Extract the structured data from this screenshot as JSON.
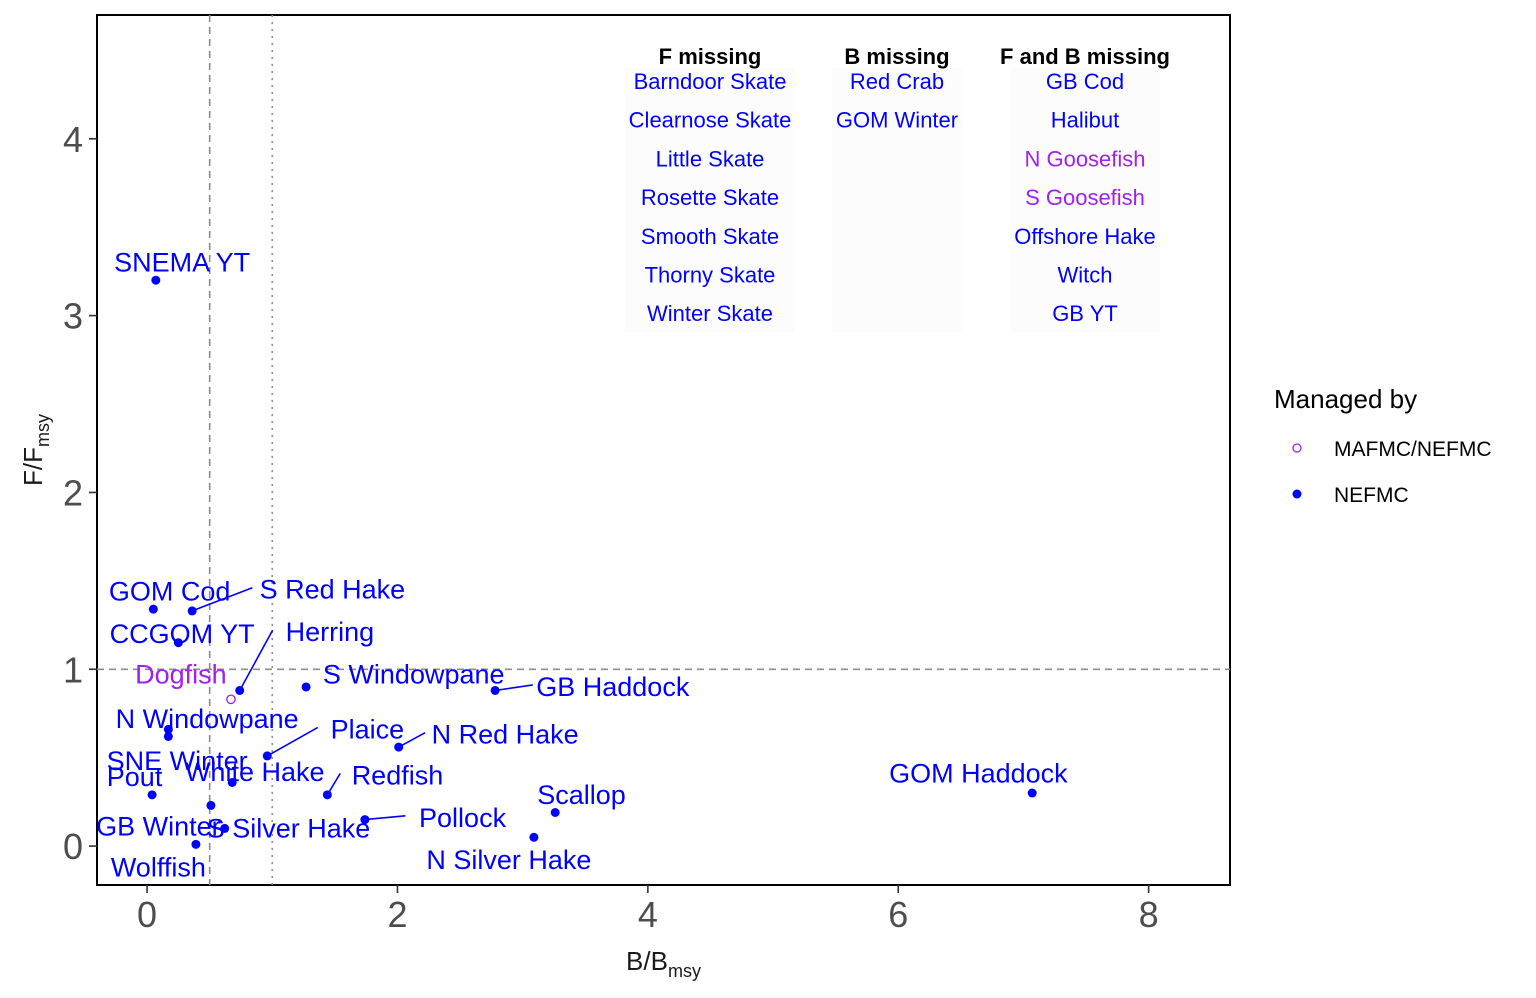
{
  "colors": {
    "NEFMC": "#0000ff",
    "MAFMC/NEFMC": "#a020f0"
  },
  "chart_data": {
    "type": "scatter",
    "xlabel": {
      "base": "B",
      "num_sub": "",
      "den": "B",
      "den_sub": "msy"
    },
    "ylabel": {
      "base": "F",
      "den": "F",
      "den_sub": "msy"
    },
    "xlim": [
      -0.4,
      8.65
    ],
    "ylim": [
      -0.22,
      4.7
    ],
    "xticks": [
      0,
      2,
      4,
      6,
      8
    ],
    "yticks": [
      0,
      1,
      2,
      3,
      4
    ],
    "grid": false,
    "reference_lines": {
      "vertical_dashed": 0.5,
      "vertical_dotted": 1,
      "horizontal_dashed": 1
    },
    "points": [
      {
        "label": "SNEMA YT",
        "x": 0.07,
        "y": 3.2,
        "group": "NEFMC",
        "lx": 0.28,
        "ly": 3.3
      },
      {
        "label": "GOM Cod",
        "x": 0.05,
        "y": 1.34,
        "group": "NEFMC",
        "lx": 0.18,
        "ly": 1.44
      },
      {
        "label": "S Red Hake",
        "x": 0.36,
        "y": 1.33,
        "group": "NEFMC",
        "lx": 1.48,
        "ly": 1.45,
        "leader": true
      },
      {
        "label": "CCGOM YT",
        "x": 0.25,
        "y": 1.15,
        "group": "NEFMC",
        "lx": 0.28,
        "ly": 1.2
      },
      {
        "label": "Herring",
        "x": 0.74,
        "y": 0.88,
        "group": "NEFMC",
        "lx": 1.46,
        "ly": 1.21,
        "leader": true
      },
      {
        "label": "Dogfish",
        "x": 0.67,
        "y": 0.83,
        "group": "MAFMC/NEFMC",
        "lx": 0.27,
        "ly": 0.97
      },
      {
        "label": "S Windowpane",
        "x": 1.27,
        "y": 0.9,
        "group": "NEFMC",
        "lx": 2.13,
        "ly": 0.97
      },
      {
        "label": "GB Haddock",
        "x": 2.78,
        "y": 0.88,
        "group": "NEFMC",
        "lx": 3.72,
        "ly": 0.9,
        "leader": true
      },
      {
        "label": "N Windowpane",
        "x": 0.17,
        "y": 0.66,
        "group": "NEFMC",
        "lx": 0.48,
        "ly": 0.72
      },
      {
        "label": "Plaice",
        "x": 0.96,
        "y": 0.51,
        "group": "NEFMC",
        "lx": 1.76,
        "ly": 0.66,
        "leader": true
      },
      {
        "label": "N Red Hake",
        "x": 2.01,
        "y": 0.56,
        "group": "NEFMC",
        "lx": 2.86,
        "ly": 0.63,
        "leader": true
      },
      {
        "label": "SNE Winter",
        "x": 0.17,
        "y": 0.62,
        "group": "NEFMC",
        "lx": 0.24,
        "ly": 0.48
      },
      {
        "label": "Pout",
        "x": 0.04,
        "y": 0.29,
        "group": "NEFMC",
        "lx": -0.1,
        "ly": 0.39
      },
      {
        "label": "White Hake",
        "x": 0.68,
        "y": 0.36,
        "group": "NEFMC",
        "lx": 0.86,
        "ly": 0.42
      },
      {
        "label": "Redfish",
        "x": 1.44,
        "y": 0.29,
        "group": "NEFMC",
        "lx": 2.0,
        "ly": 0.4,
        "leader": true
      },
      {
        "label": "GOM Haddock",
        "x": 7.07,
        "y": 0.3,
        "group": "NEFMC",
        "lx": 6.64,
        "ly": 0.41
      },
      {
        "label": "Scallop",
        "x": 3.26,
        "y": 0.19,
        "group": "NEFMC",
        "lx": 3.47,
        "ly": 0.29
      },
      {
        "label": "Pollock",
        "x": 1.74,
        "y": 0.15,
        "group": "NEFMC",
        "lx": 2.52,
        "ly": 0.16,
        "leader": true
      },
      {
        "label": "S Silver Hake",
        "x": 0.62,
        "y": 0.1,
        "group": "NEFMC",
        "lx": 1.13,
        "ly": 0.1
      },
      {
        "label": "GB Winter",
        "x": 0.51,
        "y": 0.23,
        "group": "NEFMC",
        "lx": 0.09,
        "ly": 0.11
      },
      {
        "label": "N Silver Hake",
        "x": 3.09,
        "y": 0.05,
        "group": "NEFMC",
        "lx": 2.89,
        "ly": -0.08
      },
      {
        "label": "Wolffish",
        "x": 0.39,
        "y": 0.01,
        "group": "NEFMC",
        "lx": 0.09,
        "ly": -0.12
      }
    ],
    "missing_table": {
      "columns": [
        {
          "header": "F missing",
          "items": [
            {
              "name": "Barndoor Skate",
              "group": "NEFMC"
            },
            {
              "name": "Clearnose Skate",
              "group": "NEFMC"
            },
            {
              "name": "Little Skate",
              "group": "NEFMC"
            },
            {
              "name": "Rosette Skate",
              "group": "NEFMC"
            },
            {
              "name": "Smooth Skate",
              "group": "NEFMC"
            },
            {
              "name": "Thorny Skate",
              "group": "NEFMC"
            },
            {
              "name": "Winter Skate",
              "group": "NEFMC"
            }
          ]
        },
        {
          "header": "B missing",
          "items": [
            {
              "name": "Red Crab",
              "group": "NEFMC"
            },
            {
              "name": "GOM Winter",
              "group": "NEFMC"
            }
          ]
        },
        {
          "header": "F and B missing",
          "items": [
            {
              "name": "GB Cod",
              "group": "NEFMC"
            },
            {
              "name": "Halibut",
              "group": "NEFMC"
            },
            {
              "name": "N Goosefish",
              "group": "MAFMC/NEFMC"
            },
            {
              "name": "S Goosefish",
              "group": "MAFMC/NEFMC"
            },
            {
              "name": "Offshore Hake",
              "group": "NEFMC"
            },
            {
              "name": "Witch",
              "group": "NEFMC"
            },
            {
              "name": "GB YT",
              "group": "NEFMC"
            }
          ]
        }
      ]
    },
    "legend": {
      "title": "Managed by",
      "placement": "right",
      "entries": [
        {
          "label": "MAFMC/NEFMC",
          "marker": "open-circle"
        },
        {
          "label": "NEFMC",
          "marker": "filled-circle"
        }
      ]
    }
  }
}
